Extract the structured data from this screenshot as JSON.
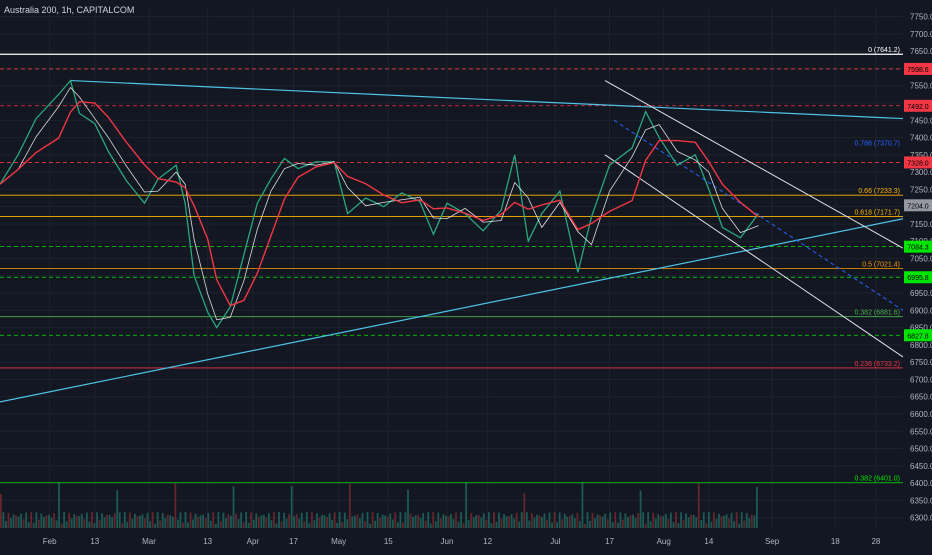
{
  "header": {
    "title": "Australia 200, 1h, CAPITALCOM"
  },
  "colors": {
    "background": "#131722",
    "grid": "#1e222d",
    "axis_text": "#b2b5be",
    "candle_up": "#26a69a",
    "candle_down": "#ef5350",
    "ma_fast": "#ffffff",
    "ma_slow": "#f23645",
    "trend_blue": "#4dc3e6",
    "channel": "#e0e3eb"
  },
  "chart_data": {
    "type": "line",
    "title": "Australia 200, 1h, CAPITALCOM",
    "x_ticks": [
      "Feb",
      "13",
      "Mar",
      "13",
      "Apr",
      "17",
      "May",
      "15",
      "Jun",
      "12",
      "Jul",
      "17",
      "Aug",
      "14",
      "Sep",
      "18",
      "28"
    ],
    "y_ticks": [
      "7750.0",
      "7700.0",
      "7650.0",
      "7600.0",
      "7550.0",
      "7500.0",
      "7450.0",
      "7400.0",
      "7350.0",
      "7300.0",
      "7250.0",
      "7200.0",
      "7150.0",
      "7100.0",
      "7050.0",
      "7000.0",
      "6950.0",
      "6900.0",
      "6850.0",
      "6800.0",
      "6750.0",
      "6700.0",
      "6650.0",
      "6600.0",
      "6550.0",
      "6500.0",
      "6450.0",
      "6400.0",
      "6350.0",
      "6300.0"
    ],
    "ylim": [
      6270,
      7775
    ],
    "xlim": [
      0,
      100
    ],
    "x_tick_positions": [
      5.5,
      10.5,
      16.5,
      23,
      28,
      32.5,
      37.5,
      43,
      49.5,
      54,
      61.5,
      67.5,
      73.5,
      78.5,
      85.5,
      92.5,
      97
    ],
    "price_series": [
      {
        "x": 0,
        "y": 7265
      },
      {
        "x": 2,
        "y": 7350
      },
      {
        "x": 4,
        "y": 7455
      },
      {
        "x": 6.5,
        "y": 7525
      },
      {
        "x": 7.8,
        "y": 7565
      },
      {
        "x": 8.8,
        "y": 7470
      },
      {
        "x": 10.5,
        "y": 7440
      },
      {
        "x": 12,
        "y": 7360
      },
      {
        "x": 14,
        "y": 7275
      },
      {
        "x": 16,
        "y": 7210
      },
      {
        "x": 17.5,
        "y": 7280
      },
      {
        "x": 19.5,
        "y": 7320
      },
      {
        "x": 20.5,
        "y": 7210
      },
      {
        "x": 21.5,
        "y": 7000
      },
      {
        "x": 23,
        "y": 6895
      },
      {
        "x": 24,
        "y": 6850
      },
      {
        "x": 25.5,
        "y": 6910
      },
      {
        "x": 27,
        "y": 7060
      },
      {
        "x": 28.5,
        "y": 7210
      },
      {
        "x": 30,
        "y": 7280
      },
      {
        "x": 31.5,
        "y": 7340
      },
      {
        "x": 33,
        "y": 7310
      },
      {
        "x": 35,
        "y": 7330
      },
      {
        "x": 37,
        "y": 7330
      },
      {
        "x": 38.5,
        "y": 7180
      },
      {
        "x": 40.5,
        "y": 7225
      },
      {
        "x": 42.5,
        "y": 7200
      },
      {
        "x": 44.5,
        "y": 7240
      },
      {
        "x": 46.5,
        "y": 7215
      },
      {
        "x": 48,
        "y": 7120
      },
      {
        "x": 49.5,
        "y": 7210
      },
      {
        "x": 51.5,
        "y": 7180
      },
      {
        "x": 53.5,
        "y": 7130
      },
      {
        "x": 55.5,
        "y": 7190
      },
      {
        "x": 57,
        "y": 7350
      },
      {
        "x": 58.5,
        "y": 7100
      },
      {
        "x": 60,
        "y": 7180
      },
      {
        "x": 62,
        "y": 7245
      },
      {
        "x": 64,
        "y": 7010
      },
      {
        "x": 65.5,
        "y": 7170
      },
      {
        "x": 67.5,
        "y": 7320
      },
      {
        "x": 70,
        "y": 7370
      },
      {
        "x": 71.5,
        "y": 7475
      },
      {
        "x": 73,
        "y": 7400
      },
      {
        "x": 75,
        "y": 7320
      },
      {
        "x": 77,
        "y": 7350
      },
      {
        "x": 78.5,
        "y": 7250
      },
      {
        "x": 80,
        "y": 7140
      },
      {
        "x": 82,
        "y": 7110
      },
      {
        "x": 84,
        "y": 7180
      }
    ],
    "horizontal_levels": [
      {
        "value": 7641.2,
        "label": "0 (7641.2)",
        "color": "#ffffff",
        "style": "solid"
      },
      {
        "value": 7598.6,
        "label": "7598.6",
        "color": "#f23645",
        "style": "dashed",
        "tag": true
      },
      {
        "value": 7492.0,
        "label": "7492.0",
        "color": "#f23645",
        "style": "dashed",
        "tag": true
      },
      {
        "value": 7370.7,
        "label": "0.786 (7370.7)",
        "color": "#2962ff",
        "style": "none"
      },
      {
        "value": 7328.0,
        "label": "7328.0",
        "color": "#f23645",
        "style": "dashed",
        "tag": true
      },
      {
        "value": 7233.3,
        "label": "0.66 (7233.3)",
        "color": "#ffb300",
        "style": "solid"
      },
      {
        "value": 7171.7,
        "label": "0.618 (7171.7)",
        "color": "#ffb300",
        "style": "solid"
      },
      {
        "value": 7084.3,
        "label": "7084.3",
        "color": "#00e600",
        "style": "dashed",
        "tag": true
      },
      {
        "value": 7021.4,
        "label": "0.5 (7021.4)",
        "color": "#ff9800",
        "style": "solid"
      },
      {
        "value": 6995.8,
        "label": "6995.8",
        "color": "#00e600",
        "style": "dashed",
        "tag": true
      },
      {
        "value": 6881.6,
        "label": "0.382 (6881.6)",
        "color": "#4caf50",
        "style": "solid"
      },
      {
        "value": 6827.8,
        "label": "6827.8",
        "color": "#00e600",
        "style": "dashed",
        "tag": true
      },
      {
        "value": 6733.2,
        "label": "0.236 (6733.2)",
        "color": "#f23645",
        "style": "solid"
      },
      {
        "value": 6401.0,
        "label": "0.382 (6401.0)",
        "color": "#00e600",
        "style": "solid"
      }
    ],
    "current_price": {
      "value": 7204.0,
      "label": "7204.0"
    }
  }
}
